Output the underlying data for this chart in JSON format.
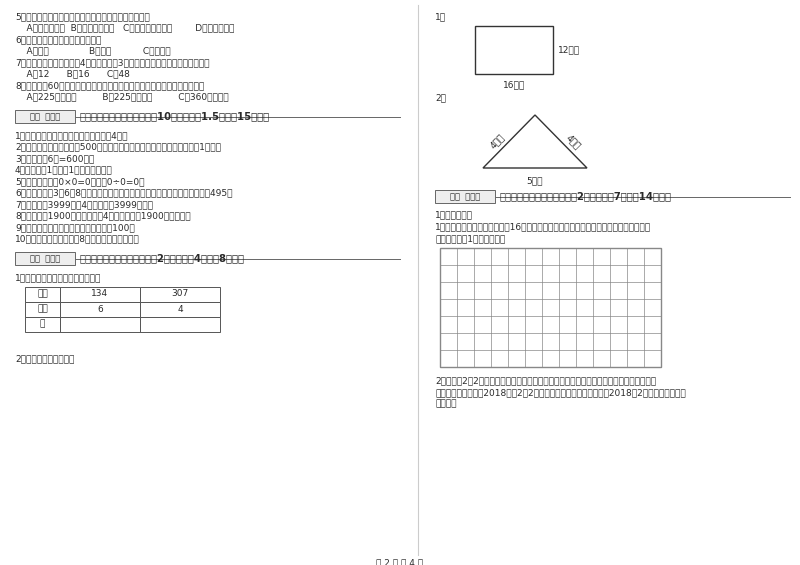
{
  "bg_color": "#ffffff",
  "text_color": "#2a2a2a",
  "font_size_body": 6.5,
  "font_size_header": 7.2,
  "left_column": {
    "lines_top": [
      "5．明天（　）会下雨，今天下午我（　）游遍全世界。",
      "    A．一定，可能  B．可能，不可能   C．不可能，不可能        D．可能，可能",
      "6．四边形（　　　）平行四边形。",
      "    A．一定              B．可能           C．不可能",
      "7．一个长方形花坛的宽是4米，长是宽的3倍，花坛的面积是（　　）平方米。",
      "    A．12      B．16      C．48",
      "8．把一根长60厘米的铁丝围绕一个正方形，这个正方形的面积是（　　）。",
      "    A．225平方分米         B．225平方厘米         C．360平方厘米"
    ],
    "defen_label1": "得分  评卷人",
    "section3_header": "三、仔细推敲，正确判断（共10小题，每题1.5分，共15分）。",
    "items": [
      "1．（　　）正方形的周长是它的边长的4倍。",
      "2．（　　）小明家离学校500米，他每天上学、回家，一个来回一共要走1千米。",
      "3．（　　）6分=600秒。",
      "4．（　　）1吨棉与1吨钢花一样重。",
      "5．（　　）因为0×0=0，所以0÷0=0。",
      "6．（　　）用3、6、8这三个数字组成的最大三位数与最小三位数，它们相差495。",
      "7．（　　）3999克与4千克相比，3999克重。",
      "8．（　　）1900年的年份数是4的倍数，所以1900年是闰年。",
      "9．（　　）两个面积单位之间的进率是100。",
      "10．（　　）一个两位数8，积一定也是两为数。"
    ],
    "defen_label2": "得分  评卷人",
    "section4_header": "四、看清题目，细心计算（共2小题，每题4分，共8分）。",
    "calc_intro": "1．把乘得的积填在下面的空格里。",
    "table_header": [
      "乘数",
      "134",
      "307"
    ],
    "table_row2": [
      "乘数",
      "6",
      "4"
    ],
    "table_row3": [
      "积",
      "",
      ""
    ],
    "perimeter_intro": "2．求下面图形的周长。"
  },
  "right_column": {
    "label1": "1．",
    "rect_label_right": "12厘米",
    "rect_label_bottom": "16厘米",
    "label2": "2．",
    "tri_left": "4分米",
    "tri_right": "4分米",
    "tri_bottom": "5分米",
    "defen_label": "得分  评卷人",
    "section5_header": "五、认真思考，综合能力（共2小题，每题7分，共14分）。",
    "handson_intro": "1．动手操作。",
    "grid_intro_line1": "1．在下面方格纸上画出面积是16平方厘米的长方形和正方形。标出相应的长、宽或边长",
    "grid_intro_line2": "（每一小格为1平方厘米）。",
    "grid_cols": 13,
    "grid_rows": 7,
    "p2_line1": "2．每年的2月2日是世界湿地日。在这一天，世界各国都举行不同形式的活动来宣传保护自",
    "p2_line2": "然资源和生态环境。2018年的2月2日是星期五，请你根据信息制作2018年2月份的月历，并回",
    "p2_line3": "答问题。"
  },
  "footer": "第 2 页 共 4 页"
}
